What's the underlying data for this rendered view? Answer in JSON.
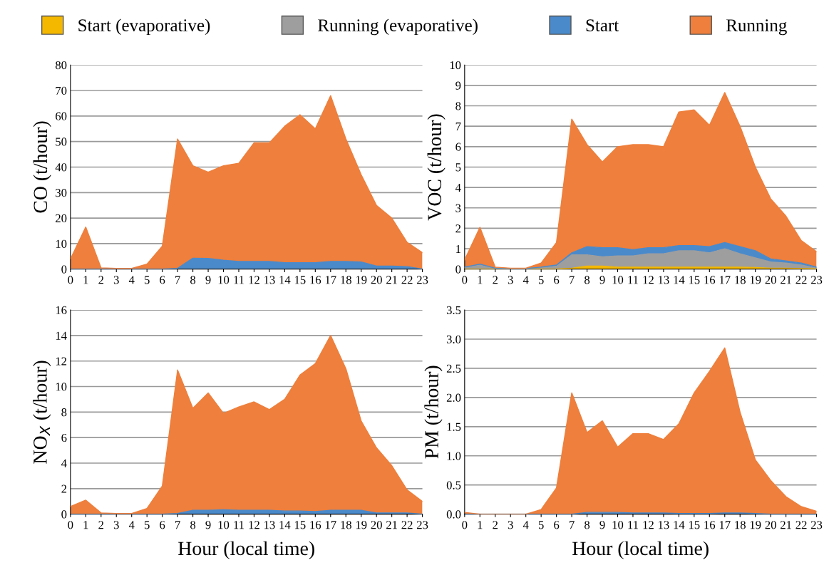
{
  "chart_data": [
    {
      "type": "area",
      "stacked": true,
      "ylabel": "CO (t/hour)",
      "categories": [
        "0",
        "1",
        "2",
        "3",
        "4",
        "5",
        "6",
        "7",
        "8",
        "9",
        "10",
        "11",
        "12",
        "13",
        "14",
        "15",
        "16",
        "17",
        "18",
        "19",
        "20",
        "21",
        "22",
        "23"
      ],
      "ylim": [
        0,
        80
      ],
      "yticks": [
        0,
        10,
        20,
        30,
        40,
        50,
        60,
        70,
        80
      ],
      "grid": "y",
      "series": [
        {
          "color": "#4a8acb",
          "values": [
            0,
            0,
            0,
            0,
            0,
            0,
            0,
            0.3,
            4.3,
            4.2,
            3.5,
            3,
            3,
            3,
            2.5,
            2.5,
            2.5,
            3,
            3,
            2.8,
            1.2,
            1.2,
            1,
            0
          ]
        },
        {
          "color": "#ee7f3c",
          "values": [
            4,
            16.5,
            0.5,
            0.3,
            0.3,
            2,
            9,
            50.7,
            36.2,
            33.8,
            37,
            38.5,
            46.5,
            46.5,
            53.5,
            58,
            52.5,
            65,
            48,
            34.2,
            23.8,
            18.8,
            9.5,
            6.5
          ]
        }
      ]
    },
    {
      "type": "area",
      "stacked": true,
      "ylabel": "VOC (t/hour)",
      "categories": [
        "0",
        "1",
        "2",
        "3",
        "4",
        "5",
        "6",
        "7",
        "8",
        "9",
        "10",
        "11",
        "12",
        "13",
        "14",
        "15",
        "16",
        "17",
        "18",
        "19",
        "20",
        "21",
        "22",
        "23"
      ],
      "ylim": [
        0,
        10
      ],
      "yticks": [
        0,
        1,
        2,
        3,
        4,
        5,
        6,
        7,
        8,
        9,
        10
      ],
      "grid": "y",
      "legend": "top",
      "series": [
        {
          "name": "Start (evaporative)",
          "color": "#f5b800",
          "values": [
            0,
            0,
            0,
            0,
            0,
            0,
            0,
            0.05,
            0.15,
            0.15,
            0.1,
            0.1,
            0.1,
            0.1,
            0.1,
            0.1,
            0.1,
            0.1,
            0.1,
            0.08,
            0.05,
            0.05,
            0.03,
            0.02
          ]
        },
        {
          "name": "Running (evaporative)",
          "color": "#9e9e9e",
          "values": [
            0.07,
            0.2,
            0.03,
            0.02,
            0.02,
            0.08,
            0.15,
            0.65,
            0.55,
            0.45,
            0.55,
            0.55,
            0.65,
            0.65,
            0.8,
            0.8,
            0.7,
            0.9,
            0.65,
            0.47,
            0.3,
            0.25,
            0.17,
            0.03
          ]
        },
        {
          "name": "Start",
          "color": "#4a8acb",
          "values": [
            0.03,
            0.05,
            0.02,
            0.01,
            0.01,
            0.02,
            0.05,
            0.1,
            0.4,
            0.45,
            0.4,
            0.3,
            0.3,
            0.3,
            0.25,
            0.25,
            0.3,
            0.3,
            0.35,
            0.35,
            0.15,
            0.1,
            0.1,
            0.05
          ]
        },
        {
          "name": "Running",
          "color": "#ee7f3c",
          "values": [
            0.35,
            1.8,
            0.05,
            0.02,
            0.02,
            0.2,
            1.1,
            6.55,
            5.0,
            4.2,
            4.95,
            5.15,
            5.05,
            4.95,
            6.55,
            6.65,
            5.95,
            7.35,
            5.9,
            4.1,
            2.95,
            2.2,
            1.1,
            0.75
          ]
        }
      ]
    },
    {
      "type": "area",
      "stacked": true,
      "xlabel": "Hour (local time)",
      "ylabel": "NO$_{X}$ (t/hour)",
      "categories": [
        "0",
        "1",
        "2",
        "3",
        "4",
        "5",
        "6",
        "7",
        "8",
        "9",
        "10",
        "11",
        "12",
        "13",
        "14",
        "15",
        "16",
        "17",
        "18",
        "19",
        "20",
        "21",
        "22",
        "23"
      ],
      "ylim": [
        0,
        16
      ],
      "yticks": [
        0,
        2,
        4,
        6,
        8,
        10,
        12,
        14,
        16
      ],
      "grid": "y",
      "series": [
        {
          "color": "#4a8acb",
          "values": [
            0,
            0,
            0,
            0,
            0,
            0,
            0,
            0.05,
            0.3,
            0.3,
            0.35,
            0.3,
            0.3,
            0.3,
            0.25,
            0.25,
            0.2,
            0.3,
            0.3,
            0.3,
            0.1,
            0.1,
            0.1,
            0
          ]
        },
        {
          "color": "#ee7f3c",
          "values": [
            0.6,
            1.1,
            0.1,
            0.05,
            0.05,
            0.45,
            2.2,
            11.25,
            8.0,
            9.2,
            7.55,
            8.1,
            8.5,
            7.9,
            8.75,
            10.65,
            11.6,
            13.7,
            11.1,
            7.0,
            5.1,
            3.7,
            1.8,
            1.0
          ]
        }
      ]
    },
    {
      "type": "area",
      "stacked": true,
      "xlabel": "Hour (local time)",
      "ylabel": "PM (t/hour)",
      "categories": [
        "0",
        "1",
        "2",
        "3",
        "4",
        "5",
        "6",
        "7",
        "8",
        "9",
        "10",
        "11",
        "12",
        "13",
        "14",
        "15",
        "16",
        "17",
        "18",
        "19",
        "20",
        "21",
        "22",
        "23"
      ],
      "ylim": [
        0,
        3.5
      ],
      "yticks": [
        {
          "value": 0,
          "label": "0.0"
        },
        {
          "value": 0.5,
          "label": "0.5"
        },
        {
          "value": 1,
          "label": "1.0"
        },
        {
          "value": 1.5,
          "label": "1.5"
        },
        {
          "value": 2,
          "label": "2.0"
        },
        {
          "value": 2.5,
          "label": "2.5"
        },
        {
          "value": 3,
          "label": "3.0"
        },
        {
          "value": 3.5,
          "label": "3.5"
        }
      ],
      "grid": "y",
      "series": [
        {
          "color": "#4a8acb",
          "values": [
            0,
            0,
            0,
            0,
            0,
            0,
            0,
            0,
            0.03,
            0.03,
            0.03,
            0.02,
            0.02,
            0.02,
            0.01,
            0.01,
            0.01,
            0.02,
            0.02,
            0.01,
            0,
            0,
            0,
            0
          ]
        },
        {
          "color": "#ee7f3c",
          "values": [
            0.03,
            0,
            0,
            0,
            0,
            0.08,
            0.45,
            2.08,
            1.37,
            1.57,
            1.12,
            1.36,
            1.36,
            1.26,
            1.54,
            2.07,
            2.44,
            2.83,
            1.73,
            0.92,
            0.58,
            0.3,
            0.13,
            0.05
          ]
        }
      ]
    }
  ]
}
